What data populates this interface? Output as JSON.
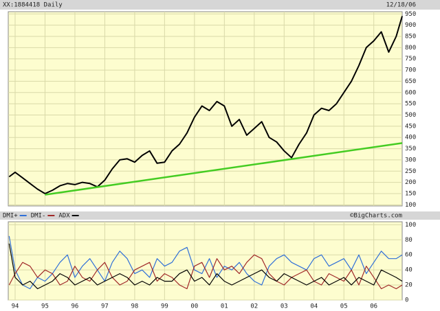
{
  "chart_data": [
    {
      "type": "line",
      "title": "XX:1884418 Daily",
      "date": "12/18/06",
      "x": [
        1993.8,
        1994.0,
        1994.25,
        1994.5,
        1994.75,
        1995.0,
        1995.25,
        1995.5,
        1995.75,
        1996.0,
        1996.25,
        1996.5,
        1996.75,
        1997.0,
        1997.25,
        1997.5,
        1997.75,
        1998.0,
        1998.25,
        1998.5,
        1998.75,
        1999.0,
        1999.25,
        1999.5,
        1999.75,
        2000.0,
        2000.25,
        2000.5,
        2000.75,
        2001.0,
        2001.25,
        2001.5,
        2001.75,
        2002.0,
        2002.25,
        2002.5,
        2002.75,
        2003.0,
        2003.25,
        2003.5,
        2003.75,
        2004.0,
        2004.25,
        2004.5,
        2004.75,
        2005.0,
        2005.25,
        2005.5,
        2005.75,
        2006.0,
        2006.25,
        2006.5,
        2006.75,
        2006.95
      ],
      "series": [
        {
          "color": "#000000",
          "values": [
            225,
            245,
            220,
            195,
            170,
            150,
            165,
            185,
            195,
            190,
            200,
            195,
            180,
            210,
            260,
            300,
            305,
            290,
            320,
            340,
            285,
            290,
            340,
            370,
            420,
            490,
            540,
            520,
            560,
            540,
            450,
            480,
            410,
            440,
            470,
            400,
            380,
            340,
            310,
            370,
            420,
            500,
            530,
            520,
            550,
            600,
            650,
            720,
            800,
            830,
            870,
            780,
            850,
            940
          ]
        }
      ],
      "trendline": {
        "x": [
          1995.0,
          2006.95
        ],
        "values": [
          145,
          375
        ],
        "color": "#44cc22"
      },
      "xlim": [
        1993.77,
        2006.95
      ],
      "xticks": [
        1994,
        1995,
        1996,
        1997,
        1998,
        1999,
        2000,
        2001,
        2002,
        2003,
        2004,
        2005,
        2006
      ],
      "ylim": [
        95,
        960
      ],
      "yticks": [
        100,
        150,
        200,
        250,
        300,
        350,
        400,
        450,
        500,
        550,
        600,
        650,
        700,
        750,
        800,
        850,
        900,
        950
      ],
      "grid": true
    },
    {
      "type": "line",
      "source": "©BigCharts.com",
      "x": [
        1993.8,
        1994.0,
        1994.25,
        1994.5,
        1994.75,
        1995.0,
        1995.25,
        1995.5,
        1995.75,
        1996.0,
        1996.25,
        1996.5,
        1996.75,
        1997.0,
        1997.25,
        1997.5,
        1997.75,
        1998.0,
        1998.25,
        1998.5,
        1998.75,
        1999.0,
        1999.25,
        1999.5,
        1999.75,
        2000.0,
        2000.25,
        2000.5,
        2000.75,
        2001.0,
        2001.25,
        2001.5,
        2001.75,
        2002.0,
        2002.25,
        2002.5,
        2002.75,
        2003.0,
        2003.25,
        2003.5,
        2003.75,
        2004.0,
        2004.25,
        2004.5,
        2004.75,
        2005.0,
        2005.25,
        2005.5,
        2005.75,
        2006.0,
        2006.25,
        2006.5,
        2006.75,
        2006.95
      ],
      "series": [
        {
          "name": "DMI+",
          "color": "#2f6fd8",
          "values": [
            85,
            40,
            20,
            15,
            30,
            25,
            35,
            50,
            60,
            30,
            45,
            55,
            40,
            25,
            50,
            65,
            55,
            35,
            40,
            30,
            55,
            45,
            50,
            65,
            70,
            40,
            35,
            55,
            30,
            45,
            40,
            50,
            35,
            25,
            20,
            45,
            55,
            60,
            50,
            45,
            40,
            55,
            60,
            45,
            50,
            55,
            40,
            60,
            35,
            50,
            65,
            55,
            55,
            60
          ]
        },
        {
          "name": "DMI-",
          "color": "#a02828",
          "values": [
            20,
            35,
            50,
            45,
            30,
            40,
            35,
            20,
            25,
            45,
            30,
            25,
            40,
            50,
            30,
            20,
            25,
            40,
            45,
            50,
            25,
            35,
            30,
            20,
            15,
            45,
            50,
            30,
            55,
            40,
            45,
            35,
            50,
            60,
            55,
            35,
            25,
            20,
            30,
            35,
            40,
            25,
            20,
            35,
            30,
            25,
            40,
            20,
            45,
            30,
            15,
            20,
            15,
            20
          ]
        },
        {
          "name": "ADX",
          "color": "#000000",
          "values": [
            75,
            30,
            20,
            25,
            15,
            20,
            25,
            35,
            30,
            20,
            25,
            30,
            20,
            25,
            30,
            35,
            30,
            20,
            25,
            20,
            30,
            25,
            25,
            35,
            40,
            25,
            30,
            20,
            35,
            25,
            20,
            25,
            30,
            35,
            40,
            30,
            25,
            35,
            30,
            25,
            20,
            25,
            30,
            20,
            25,
            30,
            20,
            30,
            25,
            20,
            40,
            35,
            30,
            25
          ]
        }
      ],
      "xlim": [
        1993.77,
        2006.95
      ],
      "xticks": [
        {
          "value": 1994,
          "label": "94"
        },
        {
          "value": 1995,
          "label": "95"
        },
        {
          "value": 1996,
          "label": "96"
        },
        {
          "value": 1997,
          "label": "97"
        },
        {
          "value": 1998,
          "label": "98"
        },
        {
          "value": 1999,
          "label": "99"
        },
        {
          "value": 2000,
          "label": "00"
        },
        {
          "value": 2001,
          "label": "01"
        },
        {
          "value": 2002,
          "label": "02"
        },
        {
          "value": 2003,
          "label": "03"
        },
        {
          "value": 2004,
          "label": "04"
        },
        {
          "value": 2005,
          "label": "05"
        },
        {
          "value": 2006,
          "label": "06"
        }
      ],
      "ylim": [
        0,
        104
      ],
      "yticks": [
        0,
        20,
        40,
        60,
        80,
        100
      ],
      "grid": true
    }
  ]
}
